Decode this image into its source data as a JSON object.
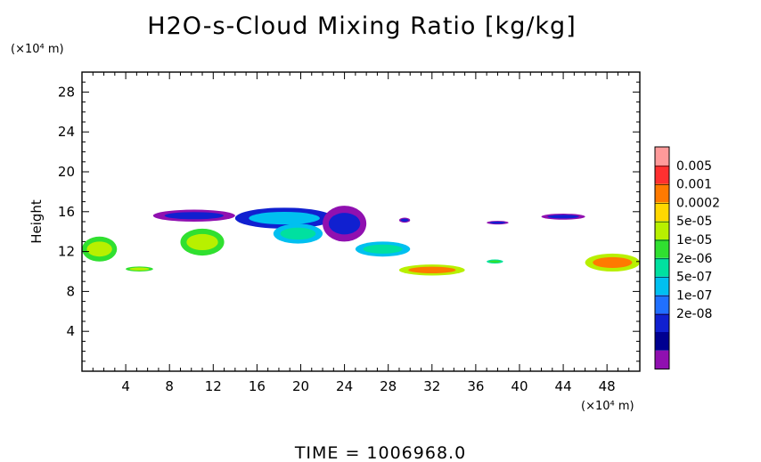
{
  "chart_data": {
    "type": "heatmap",
    "title": "H2O-s-Cloud Mixing Ratio [kg/kg]",
    "ylabel": "Height",
    "x_unit": "(×10⁴ m)",
    "y_unit": "(×10⁴ m)",
    "footer": "TIME = 1006968.0",
    "xlim": [
      0,
      51
    ],
    "ylim": [
      0,
      30
    ],
    "x_ticks": [
      "4",
      "8",
      "12",
      "16",
      "20",
      "24",
      "28",
      "32",
      "36",
      "40",
      "44",
      "48"
    ],
    "y_ticks": [
      "4",
      "8",
      "12",
      "16",
      "20",
      "24",
      "28"
    ],
    "colorbar": {
      "labels": [
        "0.005",
        "0.001",
        "0.0002",
        "5e-05",
        "1e-05",
        "2e-06",
        "5e-07",
        "1e-07",
        "2e-08"
      ],
      "colors": [
        "#ff9a9a",
        "#ff3030",
        "#ff7a00",
        "#ffd800",
        "#b8f000",
        "#30e030",
        "#00e0a0",
        "#00c0f0",
        "#2070ff",
        "#1020d0",
        "#000090",
        "#9010b0"
      ]
    },
    "regions": [
      {
        "x": [
          6.5,
          14
        ],
        "y": [
          15.0,
          16.2
        ],
        "level": "1e-07"
      },
      {
        "x": [
          14,
          23
        ],
        "y": [
          14.3,
          16.4
        ],
        "level": "5e-07"
      },
      {
        "x": [
          22,
          26
        ],
        "y": [
          13.0,
          16.6
        ],
        "level": "1e-07"
      },
      {
        "x": [
          29,
          30
        ],
        "y": [
          14.9,
          15.4
        ],
        "level": "1e-07"
      },
      {
        "x": [
          37,
          39
        ],
        "y": [
          14.8,
          15.0
        ],
        "level": "1e-07"
      },
      {
        "x": [
          42,
          46
        ],
        "y": [
          15.2,
          15.8
        ],
        "level": "1e-07"
      },
      {
        "x": [
          0,
          3.2
        ],
        "y": [
          11.0,
          13.5
        ],
        "level": "5e-05"
      },
      {
        "x": [
          4,
          6.5
        ],
        "y": [
          10.0,
          10.5
        ],
        "level": "5e-05"
      },
      {
        "x": [
          9,
          13
        ],
        "y": [
          11.6,
          14.3
        ],
        "level": "5e-05"
      },
      {
        "x": [
          17.5,
          22
        ],
        "y": [
          12.8,
          14.8
        ],
        "level": "2e-06"
      },
      {
        "x": [
          25,
          30
        ],
        "y": [
          11.5,
          13.0
        ],
        "level": "2e-06"
      },
      {
        "x": [
          29,
          35
        ],
        "y": [
          9.6,
          10.7
        ],
        "level": "0.0002"
      },
      {
        "x": [
          37,
          38.5
        ],
        "y": [
          10.8,
          11.2
        ],
        "level": "1e-05"
      },
      {
        "x": [
          46,
          51
        ],
        "y": [
          10.0,
          11.8
        ],
        "level": "0.0002"
      }
    ]
  }
}
